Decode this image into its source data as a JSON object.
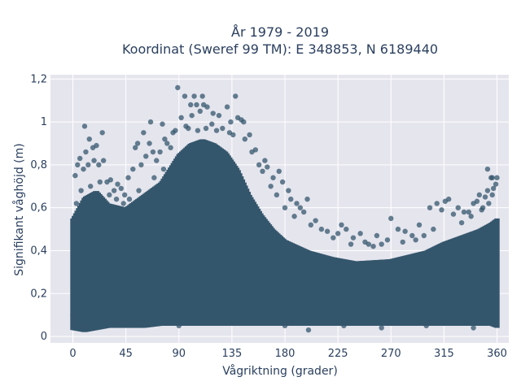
{
  "chart_data": {
    "type": "scatter",
    "title_line1": "År 1979 - 2019",
    "title_line2": "Koordinat (Sweref 99 TM): E 348853, N 6189440",
    "xlabel": "Vågriktning (grader)",
    "ylabel": "Signifikant våghöjd (m)",
    "xlim": [
      -19,
      370
    ],
    "ylim": [
      -0.03,
      1.22
    ],
    "x_ticks": [
      0,
      45,
      90,
      135,
      180,
      225,
      270,
      315,
      360
    ],
    "x_tick_labels": [
      "0",
      "45",
      "90",
      "135",
      "180",
      "225",
      "270",
      "315",
      "360"
    ],
    "y_ticks": [
      0,
      0.2,
      0.4,
      0.6,
      0.8,
      1.0,
      1.2
    ],
    "y_tick_labels": [
      "0",
      "0,2",
      "0,4",
      "0,6",
      "0,8",
      "1",
      "1,2"
    ],
    "grid": true,
    "marker_color": "#34566c",
    "plot_background": "#e5e5ee",
    "envelope": {
      "x": [
        0,
        10,
        20,
        30,
        45,
        60,
        75,
        90,
        100,
        110,
        120,
        130,
        140,
        150,
        160,
        170,
        180,
        200,
        220,
        240,
        270,
        300,
        315,
        330,
        345,
        355,
        360
      ],
      "upper": [
        0.55,
        0.65,
        0.68,
        0.62,
        0.6,
        0.66,
        0.72,
        0.85,
        0.9,
        0.92,
        0.9,
        0.86,
        0.78,
        0.66,
        0.57,
        0.5,
        0.45,
        0.4,
        0.37,
        0.35,
        0.36,
        0.4,
        0.44,
        0.47,
        0.5,
        0.53,
        0.55
      ],
      "lower": [
        0.03,
        0.02,
        0.03,
        0.04,
        0.04,
        0.04,
        0.05,
        0.05,
        0.05,
        0.05,
        0.05,
        0.05,
        0.05,
        0.05,
        0.05,
        0.05,
        0.05,
        0.05,
        0.05,
        0.05,
        0.05,
        0.05,
        0.05,
        0.05,
        0.05,
        0.05,
        0.04
      ]
    },
    "points": [
      [
        89,
        1.16
      ],
      [
        95,
        1.12
      ],
      [
        100,
        1.08
      ],
      [
        101,
        1.03
      ],
      [
        103,
        1.12
      ],
      [
        105,
        1.08
      ],
      [
        108,
        1.05
      ],
      [
        110,
        1.12
      ],
      [
        111,
        1.08
      ],
      [
        114,
        1.07
      ],
      [
        119,
        1.04
      ],
      [
        124,
        1.03
      ],
      [
        131,
        1.07
      ],
      [
        134,
        1.0
      ],
      [
        138,
        1.12
      ],
      [
        140,
        1.02
      ],
      [
        143,
        1.01
      ],
      [
        145,
        1.0
      ],
      [
        118,
        0.99
      ],
      [
        92,
        1.02
      ],
      [
        96,
        0.98
      ],
      [
        10,
        0.98
      ],
      [
        14,
        0.92
      ],
      [
        20,
        0.89
      ],
      [
        25,
        0.95
      ],
      [
        60,
        0.95
      ],
      [
        66,
        1.0
      ],
      [
        76,
        0.99
      ],
      [
        65,
        0.9
      ],
      [
        55,
        0.9
      ],
      [
        53,
        0.88
      ],
      [
        78,
        0.92
      ],
      [
        85,
        0.95
      ],
      [
        150,
        0.94
      ],
      [
        155,
        0.87
      ],
      [
        163,
        0.82
      ],
      [
        165,
        0.79
      ],
      [
        175,
        0.77
      ],
      [
        170,
        0.74
      ],
      [
        178,
        0.72
      ],
      [
        183,
        0.68
      ],
      [
        185,
        0.64
      ],
      [
        190,
        0.62
      ],
      [
        193,
        0.6
      ],
      [
        196,
        0.58
      ],
      [
        199,
        0.64
      ],
      [
        206,
        0.54
      ],
      [
        211,
        0.5
      ],
      [
        225,
        0.48
      ],
      [
        228,
        0.52
      ],
      [
        232,
        0.5
      ],
      [
        238,
        0.46
      ],
      [
        244,
        0.48
      ],
      [
        248,
        0.44
      ],
      [
        251,
        0.43
      ],
      [
        258,
        0.47
      ],
      [
        267,
        0.45
      ],
      [
        270,
        0.55
      ],
      [
        276,
        0.5
      ],
      [
        282,
        0.49
      ],
      [
        288,
        0.47
      ],
      [
        294,
        0.52
      ],
      [
        298,
        0.47
      ],
      [
        303,
        0.6
      ],
      [
        309,
        0.62
      ],
      [
        313,
        0.59
      ],
      [
        316,
        0.63
      ],
      [
        319,
        0.64
      ],
      [
        323,
        0.57
      ],
      [
        327,
        0.6
      ],
      [
        332,
        0.58
      ],
      [
        336,
        0.58
      ],
      [
        340,
        0.62
      ],
      [
        343,
        0.63
      ],
      [
        345,
        0.66
      ],
      [
        347,
        0.59
      ],
      [
        350,
        0.65
      ],
      [
        352,
        0.68
      ],
      [
        353,
        0.62
      ],
      [
        355,
        0.74
      ],
      [
        356,
        0.66
      ],
      [
        357,
        0.69
      ],
      [
        359,
        0.71
      ],
      [
        360,
        0.74
      ],
      [
        352,
        0.78
      ],
      [
        356,
        0.74
      ],
      [
        2,
        0.75
      ],
      [
        4,
        0.8
      ],
      [
        6,
        0.83
      ],
      [
        9,
        0.78
      ],
      [
        11,
        0.86
      ],
      [
        13,
        0.8
      ],
      [
        17,
        0.88
      ],
      [
        18,
        0.82
      ],
      [
        22,
        0.8
      ],
      [
        26,
        0.82
      ],
      [
        29,
        0.72
      ],
      [
        32,
        0.73
      ],
      [
        35,
        0.68
      ],
      [
        38,
        0.71
      ],
      [
        41,
        0.69
      ],
      [
        44,
        0.66
      ],
      [
        47,
        0.74
      ],
      [
        51,
        0.78
      ],
      [
        58,
        0.8
      ],
      [
        62,
        0.84
      ],
      [
        68,
        0.86
      ],
      [
        71,
        0.82
      ],
      [
        74,
        0.86
      ],
      [
        80,
        0.9
      ],
      [
        83,
        0.88
      ],
      [
        87,
        0.96
      ],
      [
        98,
        0.97
      ],
      [
        106,
        0.96
      ],
      [
        113,
        0.97
      ],
      [
        122,
        0.96
      ],
      [
        127,
        0.97
      ],
      [
        133,
        0.95
      ],
      [
        136,
        0.94
      ],
      [
        146,
        0.92
      ],
      [
        152,
        0.86
      ],
      [
        158,
        0.8
      ],
      [
        161,
        0.77
      ],
      [
        168,
        0.7
      ],
      [
        173,
        0.66
      ],
      [
        180,
        0.6
      ],
      [
        188,
        0.56
      ],
      [
        202,
        0.52
      ],
      [
        216,
        0.49
      ],
      [
        221,
        0.46
      ],
      [
        236,
        0.43
      ],
      [
        255,
        0.42
      ],
      [
        262,
        0.43
      ],
      [
        280,
        0.44
      ],
      [
        291,
        0.45
      ],
      [
        306,
        0.5
      ],
      [
        330,
        0.53
      ],
      [
        338,
        0.56
      ],
      [
        348,
        0.6
      ],
      [
        3,
        0.62
      ],
      [
        7,
        0.68
      ],
      [
        15,
        0.7
      ],
      [
        23,
        0.72
      ],
      [
        31,
        0.66
      ],
      [
        37,
        0.64
      ],
      [
        43,
        0.62
      ],
      [
        48,
        0.64
      ],
      [
        56,
        0.68
      ],
      [
        69,
        0.74
      ],
      [
        77,
        0.78
      ],
      [
        0,
        0.1
      ],
      [
        1,
        0.06
      ],
      [
        5,
        0.08
      ],
      [
        8,
        0.05
      ],
      [
        12,
        0.04
      ],
      [
        16,
        0.06
      ],
      [
        27,
        0.07
      ],
      [
        40,
        0.06
      ],
      [
        90,
        0.05
      ],
      [
        180,
        0.05
      ],
      [
        200,
        0.03
      ],
      [
        230,
        0.05
      ],
      [
        262,
        0.04
      ],
      [
        300,
        0.05
      ],
      [
        340,
        0.04
      ],
      [
        358,
        0.06
      ]
    ]
  }
}
